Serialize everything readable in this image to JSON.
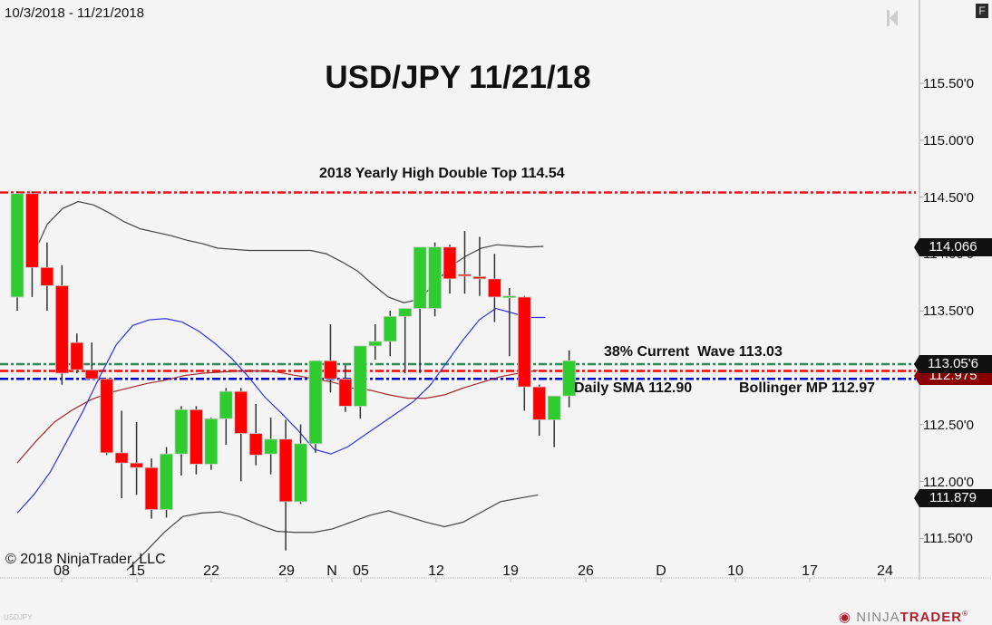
{
  "header": {
    "date_range": "10/3/2018 - 11/21/2018",
    "title": "USD/JPY 11/21/18",
    "f_button": "F",
    "symbol_watermark": "USDJPY",
    "copyright": "© 2018 NinjaTrader, LLC",
    "logo": {
      "part1": "NINJA",
      "part2": "TRADER",
      "reg": "®"
    }
  },
  "annotations": {
    "yearly_high": "2018 Yearly High Double Top 114.54",
    "wave": "38% Current  Wave 113.03",
    "sma": "Daily SMA 112.90",
    "bollinger": "Bollinger MP 112.97"
  },
  "price_tags": {
    "upper_band": "114.066",
    "last_price": "113.05'6",
    "mid_band": "112.975",
    "lower_band": "111.879"
  },
  "colors": {
    "up": "#2ecc2e",
    "down": "#ff0000",
    "yearly_high_line": "#e8141e",
    "wave_line": "#2e8b57",
    "mp_line": "#ff0000",
    "sma_line": "#0000cc",
    "bollinger_band": "#444444",
    "bollinger_mid": "#a52a2a",
    "blue_ma": "#3333dd"
  },
  "chart_data": {
    "type": "candlestick",
    "title": "USD/JPY 11/21/18",
    "subtitle": "10/3/2018 - 11/21/2018",
    "xlabel": "",
    "ylabel": "",
    "ylim": [
      111.2,
      115.9
    ],
    "y_ticks": [
      "115.50'0",
      "115.00'0",
      "114.50'0",
      "114.00'0",
      "113.50'0",
      "113.00'0",
      "112.50'0",
      "112.00'0",
      "111.50'0"
    ],
    "x_ticks": [
      "08",
      "15",
      "22",
      "29",
      "N",
      "05",
      "12",
      "19",
      "26",
      "D",
      "10",
      "17",
      "24"
    ],
    "grid": false,
    "candles": [
      {
        "o": 113.62,
        "h": 114.55,
        "l": 113.5,
        "c": 114.53
      },
      {
        "o": 114.53,
        "h": 114.55,
        "l": 113.62,
        "c": 113.88
      },
      {
        "o": 113.88,
        "h": 114.1,
        "l": 113.5,
        "c": 113.72
      },
      {
        "o": 113.72,
        "h": 113.9,
        "l": 112.85,
        "c": 112.95
      },
      {
        "o": 113.22,
        "h": 113.3,
        "l": 112.95,
        "c": 112.98
      },
      {
        "o": 112.98,
        "h": 113.22,
        "l": 112.9,
        "c": 112.9
      },
      {
        "o": 112.9,
        "h": 112.9,
        "l": 112.23,
        "c": 112.25
      },
      {
        "o": 112.25,
        "h": 112.62,
        "l": 111.85,
        "c": 112.16
      },
      {
        "o": 112.16,
        "h": 112.52,
        "l": 111.88,
        "c": 112.12
      },
      {
        "o": 112.12,
        "h": 112.2,
        "l": 111.67,
        "c": 111.75
      },
      {
        "o": 111.75,
        "h": 112.3,
        "l": 111.68,
        "c": 112.24
      },
      {
        "o": 112.24,
        "h": 112.66,
        "l": 112.05,
        "c": 112.63
      },
      {
        "o": 112.63,
        "h": 112.66,
        "l": 112.06,
        "c": 112.15
      },
      {
        "o": 112.15,
        "h": 112.56,
        "l": 112.1,
        "c": 112.55
      },
      {
        "o": 112.55,
        "h": 112.82,
        "l": 112.32,
        "c": 112.79
      },
      {
        "o": 112.79,
        "h": 112.82,
        "l": 112.0,
        "c": 112.42
      },
      {
        "o": 112.42,
        "h": 112.68,
        "l": 112.14,
        "c": 112.23
      },
      {
        "o": 112.24,
        "h": 112.56,
        "l": 112.06,
        "c": 112.37
      },
      {
        "o": 112.37,
        "h": 112.54,
        "l": 111.39,
        "c": 111.82
      },
      {
        "o": 111.82,
        "h": 112.5,
        "l": 111.8,
        "c": 112.33
      },
      {
        "o": 112.33,
        "h": 113.0,
        "l": 112.25,
        "c": 113.06
      },
      {
        "o": 113.06,
        "h": 113.38,
        "l": 112.78,
        "c": 112.9
      },
      {
        "o": 112.9,
        "h": 113.02,
        "l": 112.61,
        "c": 112.66
      },
      {
        "o": 112.66,
        "h": 113.13,
        "l": 112.55,
        "c": 113.19
      },
      {
        "o": 113.19,
        "h": 113.38,
        "l": 113.07,
        "c": 113.23
      },
      {
        "o": 113.23,
        "h": 113.5,
        "l": 113.1,
        "c": 113.45
      },
      {
        "o": 113.45,
        "h": 113.51,
        "l": 112.95,
        "c": 113.52
      },
      {
        "o": 113.52,
        "h": 113.92,
        "l": 112.95,
        "c": 114.06
      },
      {
        "o": 113.52,
        "h": 114.1,
        "l": 113.45,
        "c": 114.06
      },
      {
        "o": 114.06,
        "h": 114.08,
        "l": 113.65,
        "c": 113.78
      },
      {
        "o": 113.82,
        "h": 114.2,
        "l": 113.65,
        "c": 113.81
      },
      {
        "o": 113.8,
        "h": 114.15,
        "l": 113.63,
        "c": 113.78
      },
      {
        "o": 113.78,
        "h": 114.0,
        "l": 113.4,
        "c": 113.62
      },
      {
        "o": 113.62,
        "h": 113.7,
        "l": 113.1,
        "c": 113.63
      },
      {
        "o": 113.62,
        "h": 113.63,
        "l": 112.62,
        "c": 112.83
      },
      {
        "o": 112.83,
        "h": 112.85,
        "l": 112.4,
        "c": 112.54
      },
      {
        "o": 112.54,
        "h": 112.75,
        "l": 112.3,
        "c": 112.75
      },
      {
        "o": 112.75,
        "h": 113.15,
        "l": 112.65,
        "c": 113.06
      }
    ],
    "horizontal_lines": [
      {
        "label": "2018 Yearly High Double Top 114.54",
        "value": 114.54,
        "color": "#e8141e",
        "style": "dash-dot"
      },
      {
        "label": "38% Current Wave 113.03",
        "value": 113.03,
        "color": "#2e8b57",
        "style": "dash-dot"
      },
      {
        "label": "Bollinger MP 112.97",
        "value": 112.97,
        "color": "#ff0000",
        "style": "dash-dot"
      },
      {
        "label": "Daily SMA 112.90",
        "value": 112.9,
        "color": "#0000cc",
        "style": "dash-dot"
      }
    ],
    "series": [
      {
        "name": "Bollinger Upper",
        "values": [
          113.96,
          114.26,
          114.4,
          114.46,
          114.43,
          114.36,
          114.28,
          114.22,
          114.19,
          114.16,
          114.12,
          114.09,
          114.05,
          114.04,
          114.03,
          114.03,
          114.03,
          114.03,
          114.03,
          114.0,
          113.93,
          113.85,
          113.73,
          113.62,
          113.57,
          113.6,
          113.74,
          113.89,
          113.98,
          114.05,
          114.08,
          114.07,
          114.06,
          114.066
        ]
      },
      {
        "name": "Bollinger Mid",
        "values": [
          112.16,
          112.35,
          112.52,
          112.63,
          112.72,
          112.78,
          112.82,
          112.86,
          112.89,
          112.93,
          112.95,
          112.96,
          112.97,
          112.97,
          112.96,
          112.93,
          112.9,
          112.87,
          112.82,
          112.8,
          112.76,
          112.73,
          112.73,
          112.76,
          112.82,
          112.87,
          112.92,
          112.95,
          112.975
        ]
      },
      {
        "name": "Bollinger Lower",
        "values": [
          111.22,
          111.38,
          111.55,
          111.69,
          111.72,
          111.73,
          111.69,
          111.62,
          111.56,
          111.55,
          111.55,
          111.58,
          111.64,
          111.7,
          111.74,
          111.69,
          111.64,
          111.6,
          111.64,
          111.73,
          111.82,
          111.85,
          111.879
        ]
      },
      {
        "name": "Blue MA",
        "values": [
          111.72,
          111.88,
          112.08,
          112.35,
          112.62,
          112.92,
          113.2,
          113.37,
          113.42,
          113.43,
          113.4,
          113.32,
          113.21,
          113.08,
          112.92,
          112.74,
          112.6,
          112.45,
          112.28,
          112.24,
          112.3,
          112.4,
          112.5,
          112.6,
          112.7,
          112.84,
          113.04,
          113.24,
          113.42,
          113.52,
          113.48,
          113.44,
          113.44
        ]
      }
    ]
  }
}
